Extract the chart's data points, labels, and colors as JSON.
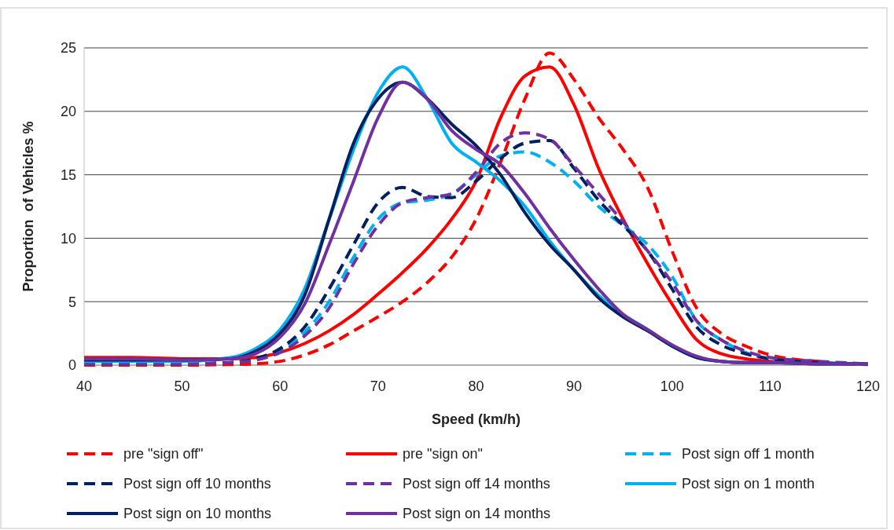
{
  "chart_data": {
    "type": "line",
    "xlabel": "Speed (km/h)",
    "ylabel": "Proportion  of Vehicles %",
    "x": [
      40,
      45,
      50,
      55,
      57.5,
      60,
      62.5,
      65,
      67.5,
      70,
      72.5,
      75,
      77.5,
      80,
      82.5,
      85,
      87.5,
      90,
      92.5,
      95,
      97.5,
      100,
      102.5,
      105,
      107.5,
      110,
      115,
      120
    ],
    "xlim": [
      40,
      120
    ],
    "xticks": [
      40,
      50,
      60,
      70,
      80,
      90,
      100,
      110,
      120
    ],
    "ylim": [
      0,
      25
    ],
    "yticks": [
      0,
      5,
      10,
      15,
      20,
      25
    ],
    "grid": "y",
    "legend": "bottom",
    "marker": "none",
    "series": [
      {
        "name": "pre \"sign off\"",
        "color": "#ff0000",
        "line_style": "dashed",
        "values": [
          0,
          0,
          0,
          0.05,
          0.1,
          0.3,
          0.8,
          1.6,
          2.7,
          3.8,
          5,
          6.5,
          8.5,
          11.5,
          16,
          21,
          24.6,
          22.5,
          19.5,
          17,
          14,
          9,
          4.5,
          2.5,
          1.5,
          0.8,
          0.3,
          null
        ]
      },
      {
        "name": "pre \"sign on\"",
        "color": "#ff0000",
        "line_style": "solid",
        "values": [
          0.6,
          0.6,
          0.5,
          0.5,
          0.6,
          1,
          1.7,
          2.7,
          4,
          5.6,
          7.3,
          9.2,
          11.5,
          14.5,
          19.5,
          22.8,
          23.5,
          20.5,
          15.5,
          11.5,
          8,
          4.8,
          2,
          0.9,
          0.5,
          0.3,
          0.1,
          null
        ]
      },
      {
        "name": "Post sign off 1 month",
        "color": "#00b0f0",
        "line_style": "dashed",
        "values": [
          0.1,
          0.1,
          0.1,
          0.2,
          0.5,
          1.2,
          2.6,
          5,
          8.5,
          11.5,
          12.8,
          13,
          13.5,
          15,
          16.5,
          16.8,
          16,
          14.5,
          12.5,
          11,
          9.5,
          7,
          3.5,
          2,
          1,
          0.5,
          0.2,
          0.1
        ]
      },
      {
        "name": "Post sign off 10 months",
        "color": "#002060",
        "line_style": "dashed",
        "values": [
          0.1,
          0.1,
          0.1,
          0.2,
          0.5,
          1.3,
          3,
          6,
          9.5,
          12.8,
          14,
          13.3,
          13.2,
          14.5,
          16.3,
          17.5,
          17.7,
          15.5,
          13,
          11,
          9,
          6,
          3,
          1.6,
          0.9,
          0.5,
          0.2,
          0.05
        ]
      },
      {
        "name": "Post sign off 14 months",
        "color": "#7030a0",
        "line_style": "dashed",
        "values": [
          0.1,
          0.1,
          0.1,
          0.2,
          0.4,
          1,
          2.3,
          4.5,
          8,
          11,
          12.8,
          13.2,
          13.5,
          15.2,
          17.5,
          18.3,
          17.8,
          15.7,
          13.5,
          11.3,
          9,
          6.5,
          3.5,
          2,
          1.1,
          0.6,
          0.3,
          0.1
        ]
      },
      {
        "name": "Post sign on 1 month",
        "color": "#00b0f0",
        "line_style": "solid",
        "values": [
          0.3,
          0.3,
          0.3,
          0.6,
          1.3,
          2.8,
          6,
          11.5,
          17,
          21.5,
          23.5,
          21,
          17.5,
          16,
          14.5,
          12.5,
          9.8,
          7.5,
          5.5,
          4,
          2.8,
          1.5,
          0.6,
          0.3,
          0.2,
          0.2,
          0.1,
          0.1
        ]
      },
      {
        "name": "Post sign on 10 months",
        "color": "#002060",
        "line_style": "solid",
        "values": [
          0.4,
          0.4,
          0.4,
          0.5,
          1.1,
          2.5,
          5.5,
          11.5,
          17.5,
          21,
          22.3,
          21,
          19,
          17.3,
          15,
          12,
          9.5,
          7.5,
          5.3,
          3.8,
          2.7,
          1.5,
          0.6,
          0.3,
          0.2,
          0.2,
          0.1,
          0.1
        ]
      },
      {
        "name": "Post sign on 14 months",
        "color": "#7030a0",
        "line_style": "solid",
        "values": [
          0.5,
          0.5,
          0.4,
          0.5,
          0.9,
          2.2,
          4.8,
          9.5,
          14.5,
          19.5,
          22.3,
          21,
          18.5,
          17,
          15.8,
          13.5,
          10.8,
          8.3,
          6,
          4,
          2.8,
          1.6,
          0.7,
          0.3,
          0.2,
          0.2,
          0.1,
          0.1
        ]
      }
    ]
  }
}
